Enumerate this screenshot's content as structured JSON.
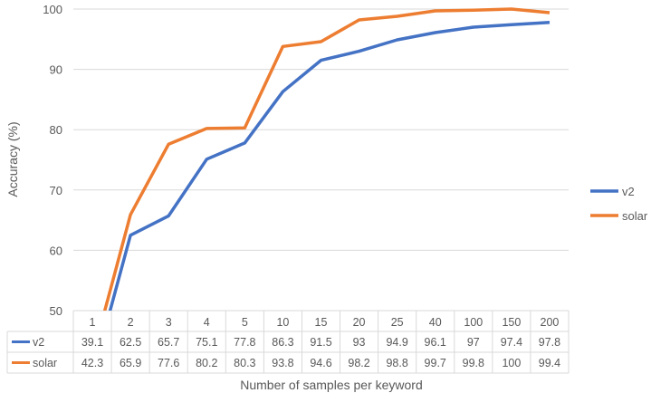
{
  "chart_data": {
    "type": "line",
    "xlabel": "Number of samples per keyword",
    "ylabel": "Accuracy (%)",
    "ylim": [
      50,
      100
    ],
    "yticks": [
      50,
      60,
      70,
      80,
      90,
      100
    ],
    "grid": true,
    "legend_position": "right",
    "data_table": true,
    "categories": [
      "1",
      "2",
      "3",
      "4",
      "5",
      "10",
      "15",
      "20",
      "25",
      "40",
      "100",
      "150",
      "200"
    ],
    "series": [
      {
        "name": "v2",
        "color": "#4472C4",
        "values": [
          39.1,
          62.5,
          65.7,
          75.1,
          77.8,
          86.3,
          91.5,
          93,
          94.9,
          96.1,
          97,
          97.4,
          97.8
        ]
      },
      {
        "name": "solar",
        "color": "#ED7D31",
        "values": [
          42.3,
          65.9,
          77.6,
          80.2,
          80.3,
          93.8,
          94.6,
          98.2,
          98.8,
          99.7,
          99.8,
          100,
          99.4
        ]
      }
    ]
  }
}
